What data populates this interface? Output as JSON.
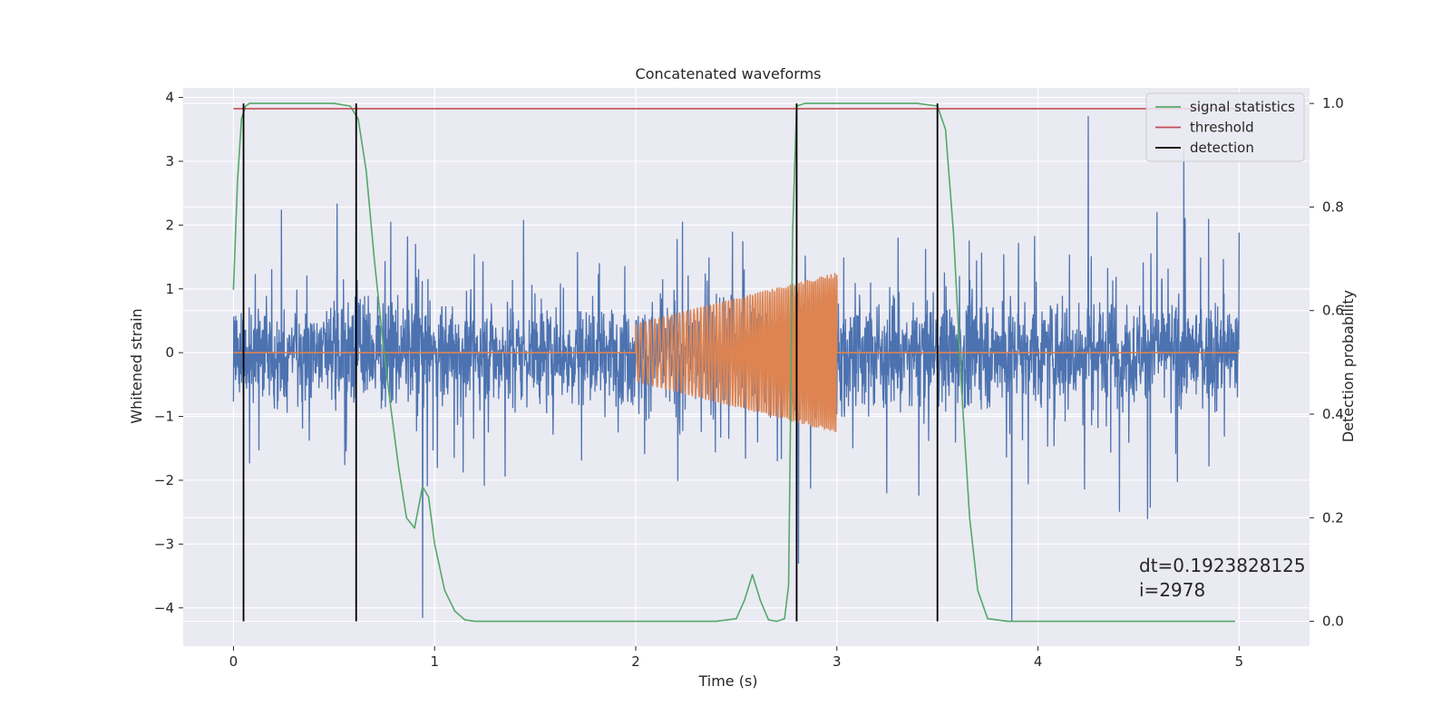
{
  "chart_data": {
    "type": "line",
    "title": "Concatenated waveforms",
    "xlabel": "Time (s)",
    "ylabel": "Whitened strain",
    "ylabel_right": "Detection probability",
    "xlim": [
      -0.25,
      5.35
    ],
    "ylim": [
      -4.6,
      4.15
    ],
    "ylim_right": [
      -0.048,
      1.03
    ],
    "x_ticks": [
      0,
      1,
      2,
      3,
      4,
      5
    ],
    "y_ticks": [
      -4,
      -3,
      -2,
      -1,
      0,
      1,
      2,
      3,
      4
    ],
    "y_ticks_right": [
      0.0,
      0.2,
      0.4,
      0.6,
      0.8,
      1.0
    ],
    "y_ticks_right_labels": [
      "0.0",
      "0.2",
      "0.4",
      "0.6",
      "0.8",
      "1.0"
    ],
    "grid": true,
    "legend_position": "top-right",
    "legend": [
      {
        "label": "signal statistics",
        "color": "#55a868"
      },
      {
        "label": "threshold",
        "color": "#c44e52"
      },
      {
        "label": "detection",
        "color": "#000000"
      }
    ],
    "annotation": [
      "dt=0.1923828125",
      " i=2978"
    ],
    "series": [
      {
        "name": "",
        "axis": "left",
        "color": "#4c72b0",
        "kind": "noise",
        "x_range": [
          0,
          5
        ],
        "typical_amplitude": 1.0,
        "envelope_max": 3.4,
        "envelope_min": -2.6,
        "outlier_spikes": [
          [
            4.25,
            3.7
          ],
          [
            3.87,
            -4.2
          ],
          [
            0.94,
            -4.15
          ],
          [
            2.81,
            -3.3
          ]
        ]
      },
      {
        "name": "",
        "axis": "left",
        "color": "#dd8452",
        "kind": "chirp",
        "x": [
          0,
          2.0,
          2.0,
          3.0,
          3.0,
          5.0
        ],
        "baseline": 0,
        "chirp_start": 2.0,
        "chirp_end": 3.0,
        "amplitude_start": 0.45,
        "amplitude_end": 1.25
      },
      {
        "name": "signal statistics",
        "axis": "right",
        "color": "#55a868",
        "x": [
          0.0,
          0.02,
          0.04,
          0.06,
          0.08,
          0.1,
          0.3,
          0.5,
          0.58,
          0.62,
          0.66,
          0.7,
          0.74,
          0.78,
          0.82,
          0.86,
          0.9,
          0.94,
          0.97,
          1.0,
          1.05,
          1.1,
          1.15,
          1.2,
          1.5,
          2.0,
          2.4,
          2.5,
          2.54,
          2.58,
          2.62,
          2.66,
          2.7,
          2.74,
          2.76,
          2.78,
          2.8,
          2.84,
          2.9,
          3.0,
          3.4,
          3.5,
          3.54,
          3.58,
          3.62,
          3.66,
          3.7,
          3.75,
          3.85,
          4.0,
          4.5,
          4.98
        ],
        "y": [
          0.64,
          0.85,
          0.97,
          0.995,
          1.0,
          1.0,
          1.0,
          1.0,
          0.995,
          0.97,
          0.87,
          0.7,
          0.55,
          0.42,
          0.3,
          0.2,
          0.18,
          0.26,
          0.24,
          0.15,
          0.06,
          0.02,
          0.003,
          0.0,
          0.0,
          0.0,
          0.0,
          0.005,
          0.04,
          0.09,
          0.04,
          0.003,
          0.0,
          0.005,
          0.07,
          0.75,
          0.995,
          1.0,
          1.0,
          1.0,
          1.0,
          0.995,
          0.95,
          0.75,
          0.45,
          0.2,
          0.06,
          0.005,
          0.0,
          0.0,
          0.0,
          0.0
        ]
      },
      {
        "name": "threshold",
        "axis": "right",
        "color": "#c44e52",
        "x": [
          0,
          5
        ],
        "y": [
          0.99,
          0.99
        ]
      }
    ],
    "detections": {
      "name": "detection",
      "color": "#000000",
      "x": [
        0.05,
        0.61,
        2.8,
        3.5
      ],
      "y_range_right": [
        0.0,
        1.0
      ]
    }
  }
}
